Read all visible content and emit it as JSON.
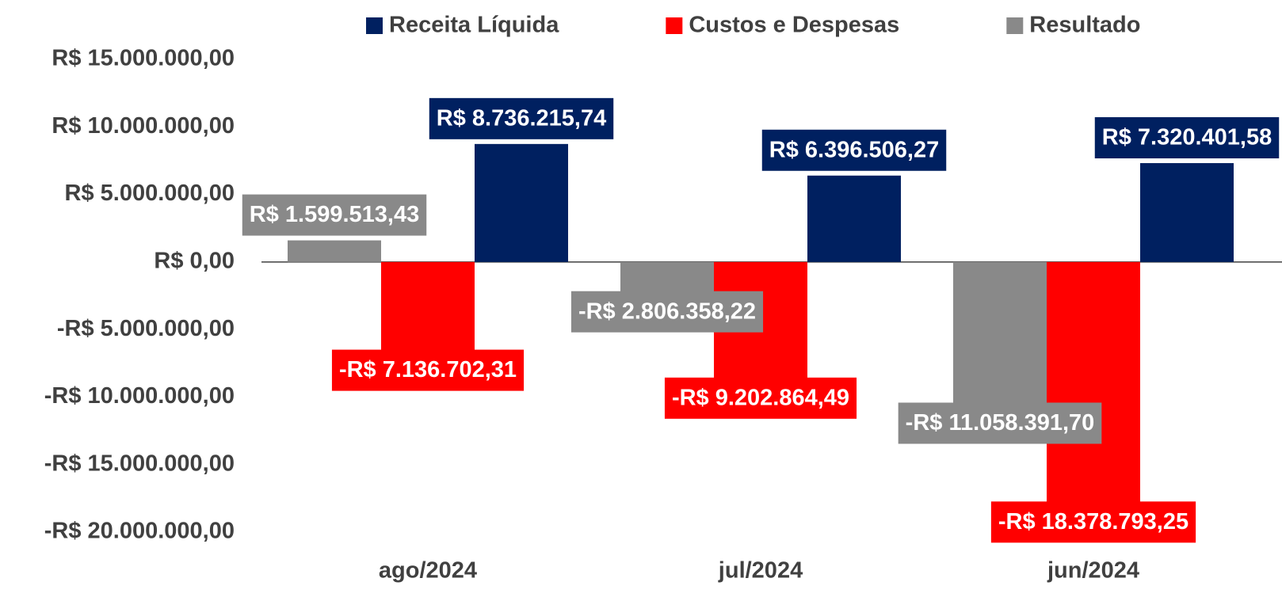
{
  "chart_data": {
    "type": "bar",
    "categories": [
      "ago/2024",
      "jul/2024",
      "jun/2024"
    ],
    "series": [
      {
        "name": "Resultado",
        "color": "#898989",
        "values": [
          1599513.43,
          -2806358.22,
          -11058391.7
        ],
        "value_labels": [
          "R$ 1.599.513,43",
          "-R$ 2.806.358,22",
          "-R$ 11.058.391,70"
        ]
      },
      {
        "name": "Custos e Despesas",
        "color": "#ff0000",
        "values": [
          -7136702.31,
          -9202864.49,
          -18378793.25
        ],
        "value_labels": [
          "-R$ 7.136.702,31",
          "-R$ 9.202.864,49",
          "-R$ 18.378.793,25"
        ]
      },
      {
        "name": "Receita Líquida",
        "color": "#002060",
        "values": [
          8736215.74,
          6396506.27,
          7320401.58
        ],
        "value_labels": [
          "R$ 8.736.215,74",
          "R$ 6.396.506,27",
          "R$ 7.320.401,58"
        ]
      }
    ],
    "ylim": [
      -20000000,
      15000000
    ],
    "yticks": [
      {
        "value": -20000000,
        "label": "-R$ 20.000.000,00"
      },
      {
        "value": -15000000,
        "label": "-R$ 15.000.000,00"
      },
      {
        "value": -10000000,
        "label": "-R$ 10.000.000,00"
      },
      {
        "value": -5000000,
        "label": "-R$ 5.000.000,00"
      },
      {
        "value": 0,
        "label": "R$ 0,00"
      },
      {
        "value": 5000000,
        "label": "R$ 5.000.000,00"
      },
      {
        "value": 10000000,
        "label": "R$ 10.000.000,00"
      },
      {
        "value": 15000000,
        "label": "R$ 15.000.000,00"
      }
    ],
    "legend": "top"
  }
}
